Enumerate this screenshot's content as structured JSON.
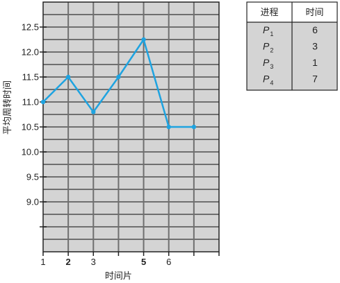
{
  "chart_data": {
    "type": "line",
    "x": [
      1,
      2,
      3,
      4,
      5,
      6,
      7
    ],
    "values": [
      11.0,
      11.5,
      10.8,
      11.5,
      12.25,
      10.5,
      10.5
    ],
    "xlabel": "时间片",
    "ylabel": "平均周转时间",
    "ylim": [
      8.0,
      13.0
    ],
    "xlim": [
      1,
      8
    ],
    "xticks": [
      {
        "value": 1,
        "label": "1",
        "bold": false
      },
      {
        "value": 2,
        "label": "2",
        "bold": true
      },
      {
        "value": 3,
        "label": "3",
        "bold": false
      },
      {
        "value": 5,
        "label": "5",
        "bold": true
      },
      {
        "value": 6,
        "label": "6",
        "bold": false
      }
    ],
    "yticks": [
      {
        "value": 9.0,
        "label": "9.0"
      },
      {
        "value": 9.5,
        "label": "9.5"
      },
      {
        "value": 10.0,
        "label": "10.0"
      },
      {
        "value": 10.5,
        "label": "10.5"
      },
      {
        "value": 11.0,
        "label": "11.0"
      },
      {
        "value": 11.5,
        "label": "11.5"
      },
      {
        "value": 12.0,
        "label": "12.0"
      },
      {
        "value": 12.5,
        "label": "12.5"
      }
    ],
    "grid": true,
    "colors": {
      "background": "#d4d4d4",
      "grid": "#6f6f6f",
      "line": "#1ea3e0",
      "frame": "#222222"
    }
  },
  "table": {
    "headers": [
      "进程",
      "时间"
    ],
    "rows": [
      {
        "name": "P",
        "sub": "1",
        "time": "6"
      },
      {
        "name": "P",
        "sub": "2",
        "time": "3"
      },
      {
        "name": "P",
        "sub": "3",
        "time": "1"
      },
      {
        "name": "P",
        "sub": "4",
        "time": "7"
      }
    ],
    "colors": {
      "header_bg": "#ffffff",
      "body_bg": "#d4d4d4",
      "border": "#222222"
    }
  }
}
